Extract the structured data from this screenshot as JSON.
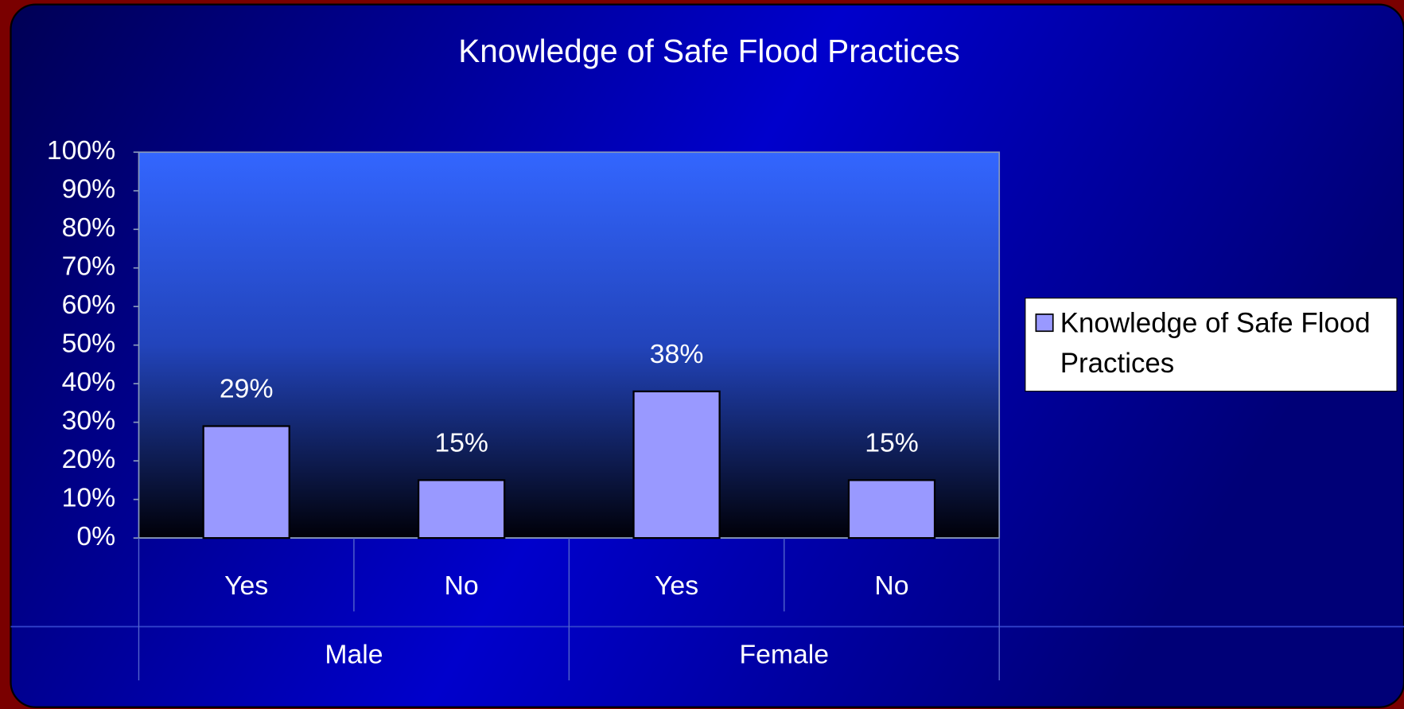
{
  "chart_data": {
    "type": "bar",
    "title": "Knowledge of Safe Flood Practices",
    "categories": [
      "Yes",
      "No",
      "Yes",
      "No"
    ],
    "groups": [
      "Male",
      "Female"
    ],
    "series": [
      {
        "name": "Knowledge of Safe Flood Practices",
        "color": "#9999ff",
        "values": [
          29,
          15,
          38,
          15
        ],
        "value_labels": [
          "29%",
          "15%",
          "38%",
          "15%"
        ]
      }
    ],
    "ylim": [
      0,
      100
    ],
    "yticks": [
      {
        "value": 0,
        "label": "0%"
      },
      {
        "value": 10,
        "label": "10%"
      },
      {
        "value": 20,
        "label": "20%"
      },
      {
        "value": 30,
        "label": "30%"
      },
      {
        "value": 40,
        "label": "40%"
      },
      {
        "value": 50,
        "label": "50%"
      },
      {
        "value": 60,
        "label": "60%"
      },
      {
        "value": 70,
        "label": "70%"
      },
      {
        "value": 80,
        "label": "80%"
      },
      {
        "value": 90,
        "label": "90%"
      },
      {
        "value": 100,
        "label": "100%"
      }
    ],
    "legend": "right"
  }
}
